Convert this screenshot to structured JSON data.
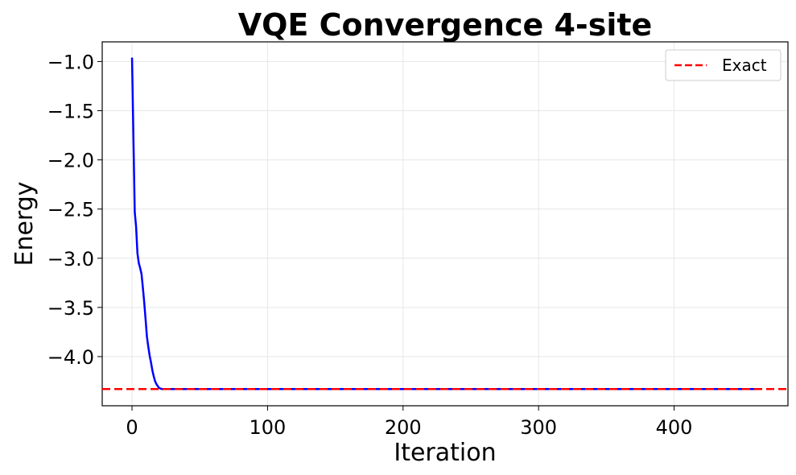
{
  "chart_data": {
    "type": "line",
    "title": "VQE Convergence 4-site",
    "xlabel": "Iteration",
    "ylabel": "Energy",
    "xlim": [
      -22,
      484
    ],
    "ylim": [
      -4.5,
      -0.8
    ],
    "xticks": [
      0,
      100,
      200,
      300,
      400
    ],
    "yticks": [
      -1.0,
      -1.5,
      -2.0,
      -2.5,
      -3.0,
      -3.5,
      -4.0
    ],
    "ytick_labels": [
      "−1.0",
      "−1.5",
      "−2.0",
      "−2.5",
      "−3.0",
      "−3.5",
      "−4.0"
    ],
    "grid": true,
    "legend_position": "top-right",
    "series": [
      {
        "color": "#0000ff",
        "style": "solid",
        "x": [
          0,
          1,
          2,
          3,
          4,
          5,
          6,
          7,
          8,
          9,
          10,
          11,
          12,
          13,
          14,
          15,
          16,
          17,
          18,
          19,
          20,
          22,
          25,
          30,
          40,
          60,
          100,
          200,
          300,
          400,
          460
        ],
        "y": [
          -0.96,
          -1.75,
          -2.53,
          -2.68,
          -2.95,
          -3.05,
          -3.1,
          -3.16,
          -3.3,
          -3.45,
          -3.62,
          -3.8,
          -3.9,
          -3.99,
          -4.06,
          -4.14,
          -4.2,
          -4.25,
          -4.28,
          -4.3,
          -4.32,
          -4.33,
          -4.33,
          -4.33,
          -4.33,
          -4.33,
          -4.33,
          -4.33,
          -4.33,
          -4.33,
          -4.33
        ]
      },
      {
        "name": "Exact",
        "color": "#ff0000",
        "style": "dashed",
        "x": [
          -22,
          484
        ],
        "y": [
          -4.33,
          -4.33
        ]
      }
    ]
  }
}
